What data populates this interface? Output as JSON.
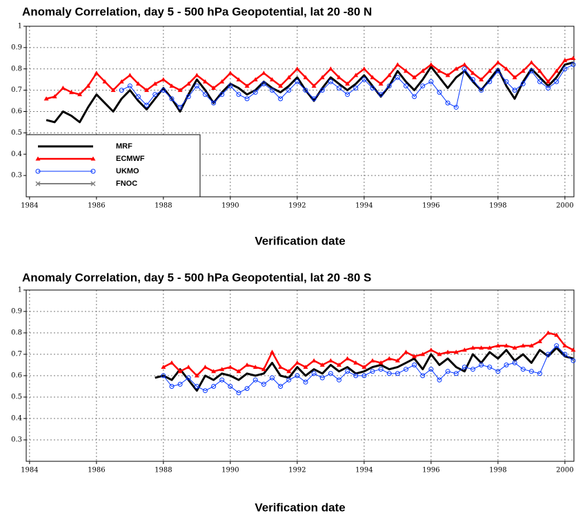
{
  "chart_data": [
    {
      "type": "line",
      "title": "Anomaly Correlation, day 5 - 500 hPa Geopotential, lat 20 -80 N",
      "xlabel": "Verification date",
      "xlim": [
        1983.9,
        2000.27
      ],
      "xticks": [
        1984,
        1986,
        1988,
        1990,
        1992,
        1994,
        1996,
        1998,
        2000
      ],
      "ylim": [
        0.2,
        1
      ],
      "yticks": [
        0.3,
        0.4,
        0.5,
        0.6,
        0.7,
        0.8,
        0.9,
        1
      ],
      "grid": true,
      "legend": "lower left",
      "x": [
        1984.5,
        1984.75,
        1985,
        1985.25,
        1985.5,
        1985.75,
        1986,
        1986.25,
        1986.5,
        1986.75,
        1987,
        1987.25,
        1987.5,
        1987.75,
        1988,
        1988.25,
        1988.5,
        1988.75,
        1989,
        1989.25,
        1989.5,
        1989.75,
        1990,
        1990.25,
        1990.5,
        1990.75,
        1991,
        1991.25,
        1991.5,
        1991.75,
        1992,
        1992.25,
        1992.5,
        1992.75,
        1993,
        1993.25,
        1993.5,
        1993.75,
        1994,
        1994.25,
        1994.5,
        1994.75,
        1995,
        1995.25,
        1995.5,
        1995.75,
        1996,
        1996.25,
        1996.5,
        1996.75,
        1997,
        1997.25,
        1997.5,
        1997.75,
        1998,
        1998.25,
        1998.5,
        1998.75,
        1999,
        1999.25,
        1999.5,
        1999.75,
        2000,
        2000.25
      ],
      "series": [
        {
          "name": "MRF",
          "color": "#000000",
          "width": 3,
          "marker": "none",
          "values": [
            0.56,
            0.55,
            0.6,
            0.58,
            0.55,
            0.62,
            0.68,
            0.64,
            0.6,
            0.66,
            0.7,
            0.65,
            0.61,
            0.66,
            0.71,
            0.66,
            0.6,
            0.68,
            0.75,
            0.7,
            0.64,
            0.69,
            0.73,
            0.71,
            0.68,
            0.7,
            0.74,
            0.71,
            0.69,
            0.72,
            0.76,
            0.7,
            0.65,
            0.71,
            0.76,
            0.73,
            0.7,
            0.73,
            0.77,
            0.72,
            0.67,
            0.72,
            0.79,
            0.74,
            0.7,
            0.75,
            0.81,
            0.76,
            0.71,
            0.76,
            0.79,
            0.74,
            0.7,
            0.75,
            0.8,
            0.72,
            0.66,
            0.74,
            0.8,
            0.76,
            0.72,
            0.76,
            0.82,
            0.83
          ]
        },
        {
          "name": "ECMWF",
          "color": "#ff0000",
          "width": 2.5,
          "marker": "triangle",
          "values": [
            0.66,
            0.67,
            0.71,
            0.69,
            0.68,
            0.72,
            0.78,
            0.74,
            0.7,
            0.74,
            0.77,
            0.73,
            0.7,
            0.73,
            0.75,
            0.72,
            0.7,
            0.73,
            0.77,
            0.74,
            0.71,
            0.74,
            0.78,
            0.75,
            0.72,
            0.75,
            0.78,
            0.75,
            0.72,
            0.76,
            0.8,
            0.76,
            0.72,
            0.76,
            0.8,
            0.76,
            0.73,
            0.77,
            0.8,
            0.76,
            0.73,
            0.77,
            0.82,
            0.79,
            0.76,
            0.79,
            0.82,
            0.79,
            0.77,
            0.8,
            0.82,
            0.78,
            0.75,
            0.79,
            0.83,
            0.8,
            0.76,
            0.79,
            0.83,
            0.79,
            0.74,
            0.79,
            0.84,
            0.85
          ]
        },
        {
          "name": "UKMO",
          "color": "#0033ff",
          "width": 1,
          "marker": "circle",
          "values": [
            null,
            null,
            null,
            null,
            null,
            null,
            null,
            null,
            null,
            0.7,
            0.72,
            0.67,
            0.63,
            0.68,
            0.7,
            0.66,
            0.62,
            0.67,
            0.72,
            0.68,
            0.64,
            0.68,
            0.72,
            0.68,
            0.66,
            0.69,
            0.73,
            0.7,
            0.66,
            0.7,
            0.74,
            0.7,
            0.66,
            0.7,
            0.74,
            0.71,
            0.68,
            0.71,
            0.75,
            0.71,
            0.68,
            0.72,
            0.76,
            0.72,
            0.67,
            0.72,
            0.74,
            0.69,
            0.64,
            0.62,
            0.8,
            0.75,
            0.7,
            0.74,
            0.79,
            0.74,
            0.7,
            0.73,
            0.79,
            0.74,
            0.71,
            0.74,
            0.8,
            0.82
          ]
        },
        {
          "name": "FNOC",
          "color": "#808080",
          "width": 2,
          "marker": "cross",
          "values": [
            null,
            null,
            null,
            null,
            null,
            null,
            null,
            null,
            null,
            null,
            null,
            null,
            null,
            null,
            null,
            null,
            null,
            null,
            null,
            null,
            null,
            null,
            null,
            null,
            null,
            null,
            null,
            null,
            null,
            null,
            null,
            null,
            null,
            null,
            null,
            null,
            null,
            null,
            null,
            null,
            null,
            null,
            null,
            null,
            null,
            null,
            null,
            null,
            null,
            null,
            null,
            null,
            null,
            null,
            null,
            null,
            null,
            null,
            null,
            null,
            null,
            null,
            null,
            null
          ]
        }
      ]
    },
    {
      "type": "line",
      "title": "Anomaly Correlation, day 5 - 500 hPa Geopotential, lat 20 -80 S",
      "xlabel": "Verification date",
      "xlim": [
        1983.9,
        2000.27
      ],
      "xticks": [
        1984,
        1986,
        1988,
        1990,
        1992,
        1994,
        1996,
        1998,
        2000
      ],
      "ylim": [
        0.2,
        1
      ],
      "yticks": [
        0.3,
        0.4,
        0.5,
        0.6,
        0.7,
        0.8,
        0.9,
        1
      ],
      "grid": true,
      "x": [
        1987.75,
        1988,
        1988.25,
        1988.5,
        1988.75,
        1989,
        1989.25,
        1989.5,
        1989.75,
        1990,
        1990.25,
        1990.5,
        1990.75,
        1991,
        1991.25,
        1991.5,
        1991.75,
        1992,
        1992.25,
        1992.5,
        1992.75,
        1993,
        1993.25,
        1993.5,
        1993.75,
        1994,
        1994.25,
        1994.5,
        1994.75,
        1995,
        1995.25,
        1995.5,
        1995.75,
        1996,
        1996.25,
        1996.5,
        1996.75,
        1997,
        1997.25,
        1997.5,
        1997.75,
        1998,
        1998.25,
        1998.5,
        1998.75,
        1999,
        1999.25,
        1999.5,
        1999.75,
        2000,
        2000.25
      ],
      "series": [
        {
          "color": "#000000",
          "width": 3,
          "marker": "none",
          "values": [
            0.59,
            0.6,
            0.58,
            0.63,
            0.58,
            0.53,
            0.6,
            0.58,
            0.61,
            0.6,
            0.58,
            0.61,
            0.6,
            0.61,
            0.66,
            0.6,
            0.59,
            0.64,
            0.6,
            0.63,
            0.61,
            0.65,
            0.62,
            0.64,
            0.61,
            0.62,
            0.64,
            0.65,
            0.63,
            0.64,
            0.66,
            0.68,
            0.63,
            0.7,
            0.65,
            0.68,
            0.64,
            0.62,
            0.7,
            0.66,
            0.71,
            0.68,
            0.72,
            0.67,
            0.7,
            0.66,
            0.72,
            0.69,
            0.73,
            0.69,
            0.68
          ]
        },
        {
          "color": "#ff0000",
          "width": 2.5,
          "marker": "triangle",
          "values": [
            null,
            0.64,
            0.66,
            0.62,
            0.64,
            0.6,
            0.64,
            0.62,
            0.63,
            0.64,
            0.62,
            0.65,
            0.64,
            0.63,
            0.71,
            0.64,
            0.62,
            0.66,
            0.64,
            0.67,
            0.65,
            0.67,
            0.65,
            0.68,
            0.66,
            0.64,
            0.67,
            0.66,
            0.68,
            0.67,
            0.71,
            0.69,
            0.7,
            0.72,
            0.7,
            0.71,
            0.71,
            0.72,
            0.73,
            0.73,
            0.73,
            0.74,
            0.74,
            0.73,
            0.74,
            0.74,
            0.76,
            0.8,
            0.79,
            0.74,
            0.72
          ]
        },
        {
          "color": "#0033ff",
          "width": 1,
          "marker": "circle",
          "values": [
            null,
            0.6,
            0.55,
            0.56,
            0.59,
            0.55,
            0.53,
            0.55,
            0.58,
            0.55,
            0.52,
            0.54,
            0.58,
            0.56,
            0.59,
            0.55,
            0.58,
            0.6,
            0.57,
            0.61,
            0.59,
            0.61,
            0.58,
            0.62,
            0.6,
            0.6,
            0.62,
            0.63,
            0.61,
            0.61,
            0.63,
            0.65,
            0.6,
            0.63,
            0.58,
            0.62,
            0.61,
            0.64,
            0.63,
            0.65,
            0.64,
            0.62,
            0.65,
            0.66,
            0.63,
            0.62,
            0.61,
            0.7,
            0.74,
            0.7,
            0.67
          ]
        }
      ]
    }
  ]
}
